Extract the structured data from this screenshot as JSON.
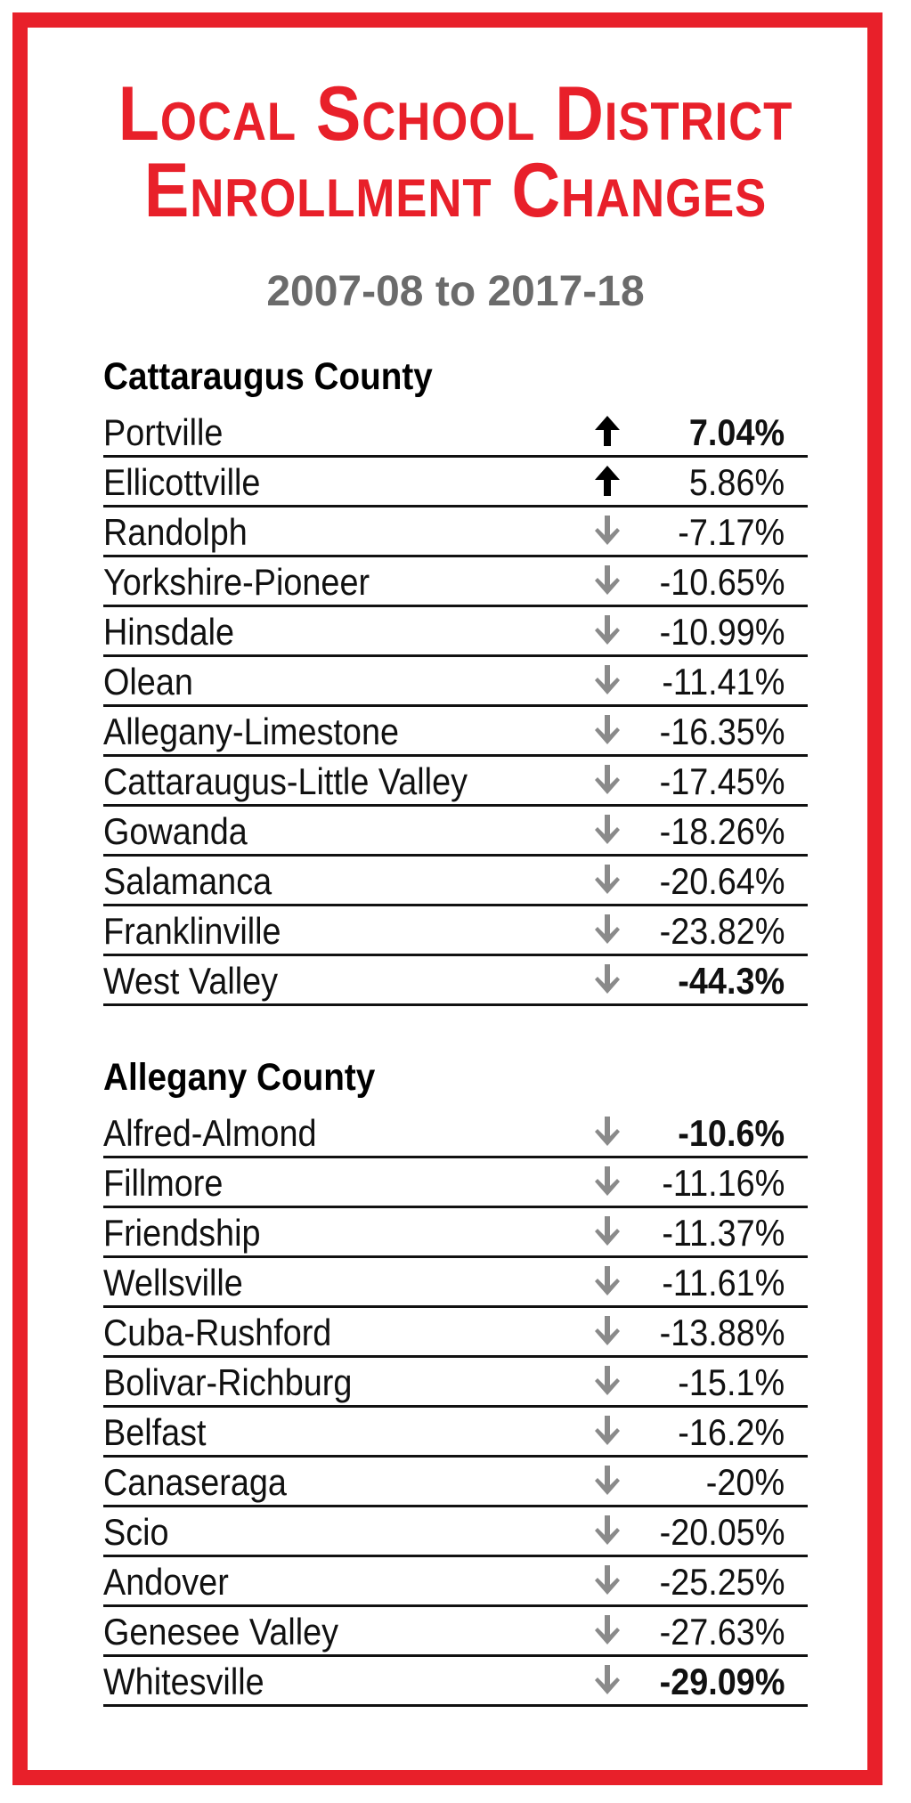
{
  "title_line1": "Local School District",
  "title_line2": "Enrollment Changes",
  "subtitle": "2007-08 to 2017-18",
  "colors": {
    "accent": "#e8202a",
    "subtitle": "#6b6b6b",
    "up_arrow": "#000000",
    "down_arrow": "#8a8a8a"
  },
  "sections": [
    {
      "heading": "Cattaraugus County",
      "rows": [
        {
          "name": "Portville",
          "direction": "up",
          "value": "7.04%",
          "bold": true
        },
        {
          "name": "Ellicottville",
          "direction": "up",
          "value": "5.86%",
          "bold": false
        },
        {
          "name": "Randolph",
          "direction": "down",
          "value": "-7.17%",
          "bold": false
        },
        {
          "name": "Yorkshire-Pioneer",
          "direction": "down",
          "value": "-10.65%",
          "bold": false
        },
        {
          "name": "Hinsdale",
          "direction": "down",
          "value": "-10.99%",
          "bold": false
        },
        {
          "name": "Olean",
          "direction": "down",
          "value": "-11.41%",
          "bold": false
        },
        {
          "name": "Allegany-Limestone",
          "direction": "down",
          "value": "-16.35%",
          "bold": false
        },
        {
          "name": "Cattaraugus-Little Valley",
          "direction": "down",
          "value": "-17.45%",
          "bold": false
        },
        {
          "name": "Gowanda",
          "direction": "down",
          "value": "-18.26%",
          "bold": false
        },
        {
          "name": "Salamanca",
          "direction": "down",
          "value": "-20.64%",
          "bold": false
        },
        {
          "name": "Franklinville",
          "direction": "down",
          "value": "-23.82%",
          "bold": false
        },
        {
          "name": "West Valley",
          "direction": "down",
          "value": "-44.3%",
          "bold": true
        }
      ]
    },
    {
      "heading": "Allegany County",
      "rows": [
        {
          "name": "Alfred-Almond",
          "direction": "down",
          "value": "-10.6%",
          "bold": true
        },
        {
          "name": "Fillmore",
          "direction": "down",
          "value": "-11.16%",
          "bold": false
        },
        {
          "name": "Friendship",
          "direction": "down",
          "value": "-11.37%",
          "bold": false
        },
        {
          "name": "Wellsville",
          "direction": "down",
          "value": "-11.61%",
          "bold": false
        },
        {
          "name": "Cuba-Rushford",
          "direction": "down",
          "value": "-13.88%",
          "bold": false
        },
        {
          "name": "Bolivar-Richburg",
          "direction": "down",
          "value": "-15.1%",
          "bold": false
        },
        {
          "name": "Belfast",
          "direction": "down",
          "value": "-16.2%",
          "bold": false
        },
        {
          "name": "Canaseraga",
          "direction": "down",
          "value": "-20%",
          "bold": false
        },
        {
          "name": "Scio",
          "direction": "down",
          "value": "-20.05%",
          "bold": false
        },
        {
          "name": "Andover",
          "direction": "down",
          "value": "-25.25%",
          "bold": false
        },
        {
          "name": "Genesee Valley",
          "direction": "down",
          "value": "-27.63%",
          "bold": false
        },
        {
          "name": "Whitesville",
          "direction": "down",
          "value": "-29.09%",
          "bold": true
        }
      ]
    }
  ]
}
